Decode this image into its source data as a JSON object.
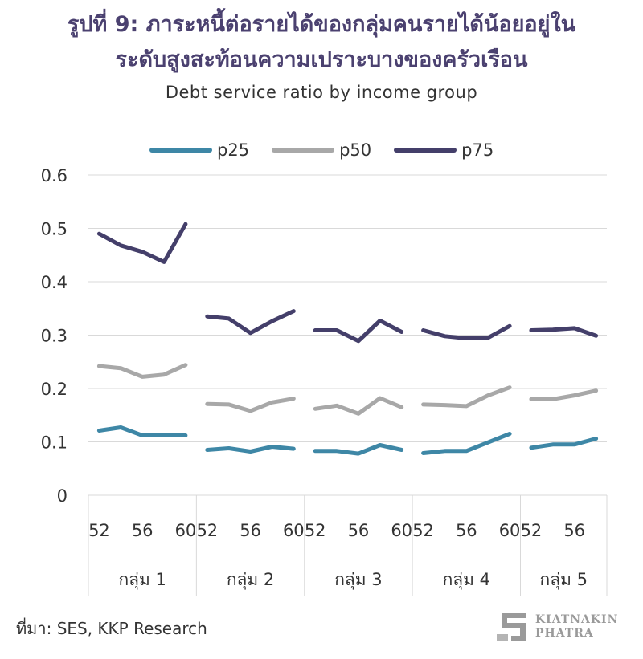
{
  "header": {
    "title_line1": "รูปที่ 9: ภาระหนี้ต่อรายได้ของกลุ่มคนรายได้น้อยอยู่ใน",
    "title_line2": "ระดับสูงสะท้อนความเปราะบางของครัวเรือน",
    "subtitle": "Debt service ratio by income group"
  },
  "colors": {
    "p25": "#3e87a6",
    "p50": "#a8a8a8",
    "p75": "#443f6a",
    "grid": "#d9d9d9",
    "title": "#4b4170"
  },
  "chart_data": {
    "type": "line",
    "title": "Debt service ratio by income group",
    "xlabel": "",
    "ylabel": "",
    "ylim": [
      0,
      0.6
    ],
    "yticks": [
      "0.6",
      "0.5",
      "0.4",
      "0.3",
      "0.2",
      "0.1",
      "0"
    ],
    "grid": true,
    "legend": "top",
    "groups": [
      {
        "label": "กลุ่ม 1",
        "years": [
          52,
          54,
          56,
          58,
          60
        ],
        "tick_labels": [
          "52",
          "56",
          "60"
        ]
      },
      {
        "label": "กลุ่ม 2",
        "years": [
          52,
          54,
          56,
          58,
          60
        ],
        "tick_labels": [
          "52",
          "56",
          "60"
        ]
      },
      {
        "label": "กลุ่ม 3",
        "years": [
          52,
          54,
          56,
          58,
          60
        ],
        "tick_labels": [
          "52",
          "56",
          "60"
        ]
      },
      {
        "label": "กลุ่ม 4",
        "years": [
          52,
          54,
          56,
          58,
          60
        ],
        "tick_labels": [
          "52",
          "56",
          "60"
        ]
      },
      {
        "label": "กลุ่ม 5",
        "years": [
          52,
          54,
          56,
          58
        ],
        "tick_labels": [
          "52",
          "56"
        ]
      }
    ],
    "series": [
      {
        "name": "p25",
        "values": [
          [
            0.121,
            0.127,
            0.112,
            0.112,
            0.112
          ],
          [
            0.085,
            0.088,
            0.082,
            0.091,
            0.087
          ],
          [
            0.083,
            0.083,
            0.078,
            0.094,
            0.085
          ],
          [
            0.079,
            0.083,
            0.083,
            0.099,
            0.115
          ],
          [
            0.089,
            0.095,
            0.095,
            0.106
          ]
        ]
      },
      {
        "name": "p50",
        "values": [
          [
            0.242,
            0.238,
            0.222,
            0.226,
            0.244
          ],
          [
            0.171,
            0.17,
            0.158,
            0.174,
            0.181
          ],
          [
            0.162,
            0.168,
            0.153,
            0.182,
            0.165
          ],
          [
            0.17,
            0.169,
            0.167,
            0.187,
            0.202
          ],
          [
            0.18,
            0.18,
            0.187,
            0.196
          ]
        ]
      },
      {
        "name": "p75",
        "values": [
          [
            0.49,
            0.468,
            0.456,
            0.437,
            0.508
          ],
          [
            0.335,
            0.331,
            0.304,
            0.326,
            0.345
          ],
          [
            0.309,
            0.309,
            0.289,
            0.327,
            0.306
          ],
          [
            0.309,
            0.298,
            0.294,
            0.295,
            0.317
          ],
          [
            0.309,
            0.31,
            0.313,
            0.299
          ]
        ]
      }
    ]
  },
  "footer": {
    "source": "ที่มา: SES, KKP Research",
    "logo_line1": "KIATNAKIN",
    "logo_line2": "PHATRA",
    "logo_icon": "kkp-logo-icon"
  }
}
